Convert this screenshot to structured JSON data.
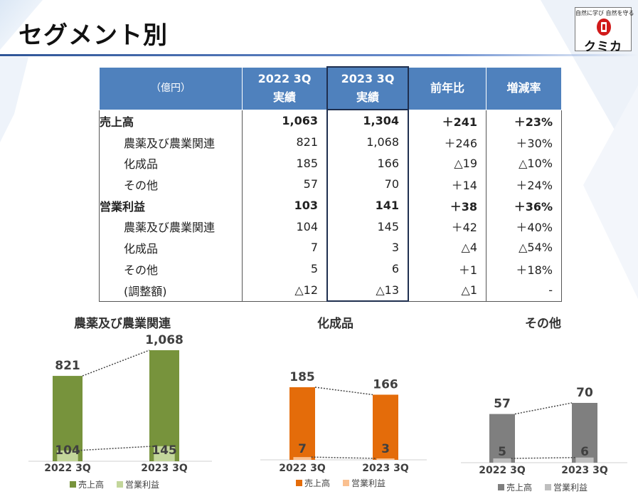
{
  "title": "セグメント別",
  "logo": {
    "tagline": "自然に学び 自然を守る",
    "brand": "クミカ"
  },
  "table": {
    "headers": {
      "unit": "（億円）",
      "y2022_line1": "2022 3Q",
      "y2022_line2": "実績",
      "y2023_line1": "2023 3Q",
      "y2023_line2": "実績",
      "yoy": "前年比",
      "rate": "増減率"
    },
    "rows": [
      {
        "label": "売上高",
        "v2022": "1,063",
        "v2023": "1,304",
        "yoy": "＋241",
        "rate": "＋23%"
      },
      {
        "label": "農薬及び農業関連",
        "v2022": "821",
        "v2023": "1,068",
        "yoy": "＋246",
        "rate": "＋30%"
      },
      {
        "label": "化成品",
        "v2022": "185",
        "v2023": "166",
        "yoy": "△19",
        "rate": "△10%"
      },
      {
        "label": "その他",
        "v2022": "57",
        "v2023": "70",
        "yoy": "＋14",
        "rate": "＋24%"
      },
      {
        "label": "営業利益",
        "v2022": "103",
        "v2023": "141",
        "yoy": "＋38",
        "rate": "＋36%"
      },
      {
        "label": "農薬及び農業関連",
        "v2022": "104",
        "v2023": "145",
        "yoy": "＋42",
        "rate": "＋40%"
      },
      {
        "label": "化成品",
        "v2022": "7",
        "v2023": "3",
        "yoy": "△4",
        "rate": "△54%"
      },
      {
        "label": "その他",
        "v2022": "5",
        "v2023": "6",
        "yoy": "＋1",
        "rate": "＋18%"
      },
      {
        "label": "(調整額)",
        "v2022": "△12",
        "v2023": "△13",
        "yoy": "△1",
        "rate": "-"
      }
    ]
  },
  "chart_data": [
    {
      "type": "bar",
      "title": "農薬及び農業関連",
      "categories": [
        "2022 3Q",
        "2023 3Q"
      ],
      "series": [
        {
          "name": "売上高",
          "values": [
            821,
            1068
          ]
        },
        {
          "name": "営業利益",
          "values": [
            104,
            145
          ]
        }
      ],
      "value_labels": {
        "sales": [
          "821",
          "1,068"
        ],
        "profit": [
          "104",
          "145"
        ]
      },
      "colors": {
        "sales": "#77933c",
        "profit": "#c3d69b"
      },
      "ylim": [
        0,
        1100
      ]
    },
    {
      "type": "bar",
      "title": "化成品",
      "categories": [
        "2022 3Q",
        "2023 3Q"
      ],
      "series": [
        {
          "name": "売上高",
          "values": [
            185,
            166
          ]
        },
        {
          "name": "営業利益",
          "values": [
            7,
            3
          ]
        }
      ],
      "value_labels": {
        "sales": [
          "185",
          "166"
        ],
        "profit": [
          "7",
          "3"
        ]
      },
      "colors": {
        "sales": "#e46c0a",
        "profit": "#fac090"
      },
      "ylim": [
        0,
        200
      ]
    },
    {
      "type": "bar",
      "title": "その他",
      "categories": [
        "2022 3Q",
        "2023 3Q"
      ],
      "series": [
        {
          "name": "売上高",
          "values": [
            57,
            70
          ]
        },
        {
          "name": "営業利益",
          "values": [
            5,
            6
          ]
        }
      ],
      "value_labels": {
        "sales": [
          "57",
          "70"
        ],
        "profit": [
          "5",
          "6"
        ]
      },
      "colors": {
        "sales": "#7f7f7f",
        "profit": "#bfbfbf"
      },
      "ylim": [
        0,
        85
      ]
    }
  ]
}
